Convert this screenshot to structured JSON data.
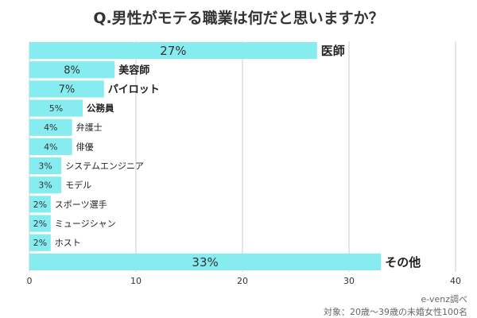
{
  "chart_data": {
    "type": "bar",
    "orientation": "horizontal",
    "title": "Q.男性がモテる職業は何だと思いますか？",
    "categories": [
      "医師",
      "美容師",
      "パイロット",
      "公務員",
      "弁護士",
      "俳優",
      "システムエンジニア",
      "モデル",
      "スポーツ選手",
      "ミュージシャン",
      "ホスト",
      "その他"
    ],
    "values": [
      27,
      8,
      7,
      5,
      4,
      4,
      3,
      3,
      2,
      2,
      2,
      33
    ],
    "data_labels": [
      "27%",
      "8%",
      "7%",
      "5%",
      "4%",
      "4%",
      "3%",
      "3%",
      "2%",
      "2%",
      "2%",
      "33%"
    ],
    "xlim": [
      0,
      40
    ],
    "xticks": [
      "0",
      "10",
      "20",
      "30",
      "40"
    ],
    "grid": true,
    "bar_color": "#86ecf0"
  },
  "source": "e-venz調べ",
  "note": "対象：20歳〜39歳の未婚女性100名"
}
